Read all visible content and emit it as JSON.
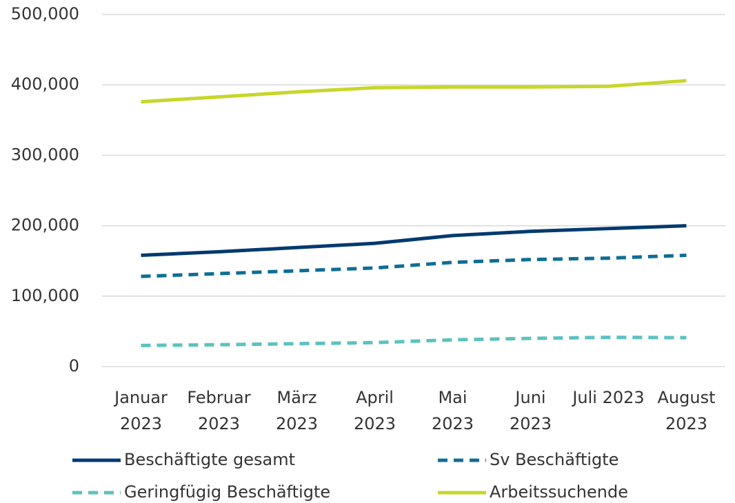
{
  "chart_data": {
    "type": "line",
    "categories": [
      "Januar 2023",
      "Februar 2023",
      "März 2023",
      "April 2023",
      "Mai 2023",
      "Juni 2023",
      "Juli 2023",
      "August 2023"
    ],
    "series": [
      {
        "name": "Beschäftigte gesamt",
        "color": "#003a70",
        "style": "solid",
        "values": [
          158000,
          163000,
          169000,
          175000,
          186000,
          192000,
          196000,
          200000
        ]
      },
      {
        "name": "Sv Beschäftigte",
        "color": "#0e6e96",
        "style": "dashed",
        "values": [
          128000,
          132000,
          136000,
          140000,
          148000,
          152000,
          154000,
          158000
        ]
      },
      {
        "name": "Geringfügig Beschäftigte",
        "color": "#5bc2c0",
        "style": "dashed",
        "values": [
          30000,
          31000,
          32500,
          34000,
          38000,
          40000,
          41500,
          41000
        ]
      },
      {
        "name": "Arbeitssuchende",
        "color": "#c8d62a",
        "style": "solid",
        "values": [
          376000,
          383000,
          390000,
          396000,
          397000,
          397000,
          398000,
          406000
        ]
      }
    ],
    "ylim": [
      0,
      500000
    ],
    "yticks": [
      0,
      {
        "value": 100000,
        "label": "100,000"
      },
      {
        "value": 200000,
        "label": "200,000"
      },
      {
        "value": 300000,
        "label": "300,000"
      },
      {
        "value": 400000,
        "label": "400,000"
      },
      {
        "value": 500000,
        "label": "500,000"
      }
    ],
    "grid": true,
    "legend": "bottom"
  }
}
